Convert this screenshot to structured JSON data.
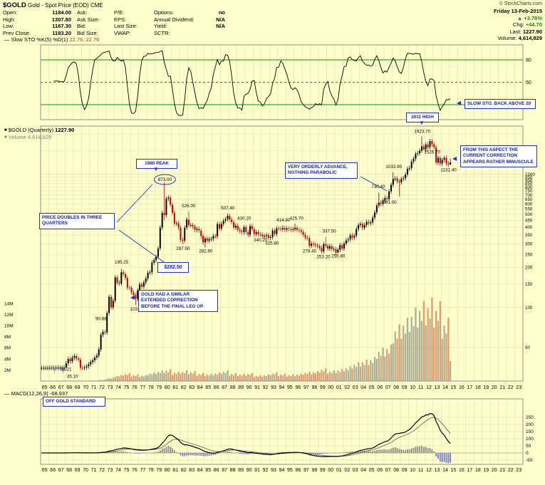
{
  "colors": {
    "bg": "#ffffcc",
    "grid": "#e4e4af",
    "up": "#000000",
    "down": "#cc0000",
    "vol_up": "rgba(110,110,110,0.55)",
    "vol_down": "rgba(214,86,43,0.6)",
    "green": "#009900",
    "anno": "#2233bb",
    "hist_pos": "#8a8a8a",
    "hist_neg": "#7b7bd0"
  },
  "icons": {
    "triangle_up": "▲",
    "triangle_down": "▼",
    "triangle_left": "◀",
    "arrow_up": "↑",
    "line_swatch": "—",
    "square_swatch": "■"
  },
  "header": {
    "symbol": "$GOLD",
    "title_rest": "Gold - Spot Price (EOD) CME",
    "copyright": "© StockCharts.com",
    "date": "Friday 13-Feb-2015",
    "pct_change": "+3.78%",
    "chg_label": "Chg:",
    "chg": "+44.70",
    "last_label": "Last:",
    "last": "1227.90",
    "volume_label": "Volume:",
    "volume": "4,614,829",
    "quote": {
      "open_label": "Open:",
      "open": "1184.00",
      "high_label": "High:",
      "high": "1307.80",
      "low_label": "Low:",
      "low": "1167.30",
      "prev_close_label": "Prev Close:",
      "prev_close": "1183.20",
      "ask_label": "Ask:",
      "ask": "",
      "ask_size_label": "Ask Size:",
      "ask_size": "",
      "bid_label": "Bid:",
      "bid": "",
      "bid_size_label": "Bid Size:",
      "bid_size": "",
      "pe_label": "P/E:",
      "pe": "",
      "eps_label": "EPS:",
      "eps": "",
      "last_size_label": "Last Size:",
      "last_size": "",
      "vwap_label": "VWAP:",
      "vwap": "",
      "options_label": "Options:",
      "options": "no",
      "dividend_label": "Annual Dividend:",
      "dividend": "N/A",
      "yield_label": "Yield:",
      "yield": "N/A",
      "sctr_label": "SCTR:",
      "sctr": ""
    }
  },
  "legends": {
    "stoch": "Slow STO %K(5) %D(1)",
    "stoch_values": "22.76, 22.76",
    "main_symbol": "$GOLD (Quarterly)",
    "main_value": "1227.90",
    "volume_label": "Volume",
    "volume_value": "4,614,829",
    "macd": "MACD(12,26,9)",
    "macd_value": "-68.937"
  },
  "annotations": {
    "slow_sto": "SLOW STO. BACK ABOVE 20",
    "high_2011": "2011 HIGH",
    "minuscule": "FROM THIS ASPECT THE CURRENT CORRECTION APPEARS RATHER MINUSCULE",
    "orderly": "VERY ORDERLY ADVANCE, NOTHING PARABOLIC",
    "peak_1980": "1980 PEAK",
    "price_doubles": "PRICE DOUBLES IN THREE QUARTERS",
    "target": "$282.50",
    "similar": "GOLD HAD A SIMILAR EXTENDED CORRECTION BEFORE THE FINAL LEG UP",
    "off_gold": "OFF GOLD STANDARD"
  },
  "chart_data": [
    {
      "type": "line",
      "name": "Slow STO %K(5) %D(1)",
      "panel": "stochastic",
      "derived_from": "computed stochastic(5,3) of the quarterly OHLC series below",
      "last_values": [
        22.76,
        22.76
      ],
      "ylim": [
        0,
        100
      ],
      "ref_lines": [
        80,
        50,
        20
      ]
    },
    {
      "type": "candlestick",
      "name": "$GOLD Quarterly",
      "start_year": 1965,
      "points_per_year": 4,
      "ylog": true,
      "ylim": [
        28,
        2300
      ],
      "y_ticks": [
        1000,
        950,
        900,
        850,
        800,
        750,
        700,
        650,
        600,
        550,
        500,
        450,
        400,
        350,
        300,
        250,
        200,
        150,
        100,
        50
      ],
      "y_gridlines_only": [
        1500,
        2000
      ],
      "x_tick_labels": [
        "65",
        "66",
        "67",
        "68",
        "69",
        "70",
        "71",
        "72",
        "73",
        "74",
        "75",
        "76",
        "77",
        "78",
        "79",
        "80",
        "81",
        "82",
        "83",
        "84",
        "85",
        "86",
        "87",
        "88",
        "89",
        "90",
        "91",
        "92",
        "93",
        "94",
        "95",
        "96",
        "97",
        "98",
        "99",
        "00",
        "01",
        "02",
        "03",
        "04",
        "05",
        "06",
        "07",
        "08",
        "09",
        "10",
        "11",
        "12",
        "13",
        "14",
        "15",
        "16",
        "17",
        "18",
        "19",
        "20",
        "21",
        "22",
        "23"
      ],
      "closes": [
        35.1,
        35.1,
        35.1,
        35.1,
        35.2,
        35.2,
        35.2,
        35.2,
        35.2,
        35.2,
        35.2,
        35.4,
        38.0,
        41.0,
        39.5,
        41.9,
        43.2,
        41.3,
        40.5,
        35.2,
        35.1,
        35.4,
        36.2,
        37.4,
        38.9,
        40.1,
        42.0,
        43.5,
        48.3,
        62.1,
        65.5,
        64.9,
        90.9,
        120.0,
        100.0,
        112.2,
        168.0,
        154.0,
        151.0,
        183.9,
        178.0,
        166.0,
        141.0,
        140.2,
        129.6,
        123.8,
        116.0,
        134.5,
        149.0,
        143.0,
        154.0,
        165.0,
        181.6,
        183.7,
        217.1,
        226.0,
        240.1,
        277.5,
        397.5,
        512.0,
        494.0,
        653.5,
        666.8,
        589.8,
        513.8,
        426.0,
        428.8,
        397.5,
        320.3,
        317.5,
        397.0,
        456.9,
        414.8,
        416.0,
        405.0,
        382.4,
        388.5,
        377.0,
        343.8,
        308.3,
        329.3,
        317.0,
        326.0,
        327.0,
        344.0,
        342.6,
        423.2,
        390.9,
        423.0,
        447.0,
        459.5,
        486.5,
        457.0,
        436.6,
        397.5,
        410.3,
        383.2,
        373.0,
        366.5,
        401.0,
        368.3,
        352.2,
        408.4,
        386.2,
        355.7,
        368.3,
        354.9,
        353.2,
        341.7,
        343.4,
        349.0,
        333.0,
        337.8,
        378.5,
        355.5,
        391.8,
        389.8,
        385.6,
        394.9,
        383.3,
        392.1,
        387.6,
        384.0,
        387.0,
        396.3,
        382.1,
        379.0,
        369.3,
        351.4,
        334.6,
        332.1,
        290.2,
        301.2,
        296.3,
        293.9,
        287.8,
        279.6,
        262.6,
        299.0,
        290.3,
        276.8,
        288.2,
        273.7,
        274.5,
        257.7,
        270.6,
        293.1,
        276.5,
        301.4,
        318.5,
        323.7,
        347.2,
        334.9,
        346.0,
        388.0,
        416.1,
        423.7,
        395.8,
        415.7,
        438.4,
        427.5,
        435.5,
        473.3,
        517.0,
        582.0,
        613.5,
        599.3,
        636.3,
        663.4,
        650.5,
        743.0,
        833.8,
        921.5,
        930.3,
        884.5,
        869.8,
        922.6,
        934.5,
        995.8,
        1096.5,
        1113.3,
        1244.0,
        1307.0,
        1421.4,
        1439.0,
        1502.8,
        1620.0,
        1531.0,
        1671.9,
        1597.4,
        1771.1,
        1675.4,
        1594.8,
        1223.7,
        1326.5,
        1202.3,
        1283.8,
        1327.3,
        1208.2,
        1184.1,
        1227.9
      ],
      "ohlc_overrides": {
        "39": {
          "h": 195.25
        },
        "46": {
          "l": 103.5
        },
        "60": {
          "h": 873.0,
          "l": 453.0
        },
        "69": {
          "l": 297.5
        },
        "72": {
          "h": 526.0
        },
        "80": {
          "l": 282.6
        },
        "91": {
          "h": 507.4
        },
        "118": {
          "h": 414.8
        },
        "124": {
          "h": 425.7
        },
        "131": {
          "l": 278.4
        },
        "138": {
          "l": 253.2
        },
        "139": {
          "h": 337.5
        },
        "145": {
          "l": 255.8
        },
        "165": {
          "h": 730.4
        },
        "172": {
          "h": 1033.9
        },
        "175": {
          "l": 681.0
        },
        "186": {
          "h": 1923.7
        },
        "187": {
          "l": 1526.7
        },
        "199": {
          "l": 1131.4
        },
        "200": {
          "h": 1307.8,
          "l": 1167.3
        }
      },
      "data_labels": [
        {
          "x": 1968.1,
          "p": 33.5,
          "t": "35.21"
        },
        {
          "x": 1968.9,
          "p": 29.6,
          "t": "35.10"
        },
        {
          "x": 1972.4,
          "p": 80.0,
          "t": "90.88"
        },
        {
          "x": 1976.8,
          "p": 95.0,
          "t": "103.50"
        },
        {
          "x": 1974.9,
          "p": 213.0,
          "t": "195.25"
        },
        {
          "x": 1980.2,
          "p": 890.0,
          "t": "873.00",
          "circled": true
        },
        {
          "x": 1982.4,
          "p": 270.0,
          "t": "297.50"
        },
        {
          "x": 1983.1,
          "p": 565.0,
          "t": "526.00"
        },
        {
          "x": 1985.2,
          "p": 258.0,
          "t": "282.60"
        },
        {
          "x": 1987.9,
          "p": 545.0,
          "t": "507.40"
        },
        {
          "x": 1989.9,
          "p": 455.0,
          "t": "430.20"
        },
        {
          "x": 1991.9,
          "p": 312.0,
          "t": "340.20"
        },
        {
          "x": 1993.3,
          "p": 296.0,
          "t": "325.80"
        },
        {
          "x": 1994.7,
          "p": 442.0,
          "t": "414.80"
        },
        {
          "x": 1996.3,
          "p": 455.0,
          "t": "425.70"
        },
        {
          "x": 1997.9,
          "p": 258.0,
          "t": "278.40"
        },
        {
          "x": 1999.6,
          "p": 234.0,
          "t": "253.20"
        },
        {
          "x": 2001.4,
          "p": 237.0,
          "t": "255.80"
        },
        {
          "x": 2000.3,
          "p": 365.0,
          "t": "337.50"
        },
        {
          "x": 2006.3,
          "p": 790.0,
          "t": "730.40"
        },
        {
          "x": 2007.7,
          "p": 600.0,
          "t": "681.00"
        },
        {
          "x": 2008.2,
          "p": 1115.0,
          "t": "1033.90"
        },
        {
          "x": 2011.7,
          "p": 2050.0,
          "t": "1923.70"
        },
        {
          "x": 2012.9,
          "p": 1430.0,
          "t": "1526.70"
        },
        {
          "x": 2014.9,
          "p": 1055.0,
          "t": "1131.40"
        }
      ]
    },
    {
      "type": "bar",
      "name": "Volume",
      "panel": "main-overlay",
      "units": "millions",
      "yearly_millions": [
        0.05,
        0.05,
        0.05,
        0.05,
        0.05,
        0.06,
        0.08,
        0.2,
        0.5,
        0.9,
        1.2,
        1.0,
        0.9,
        1.3,
        1.6,
        1.8,
        1.4,
        1.6,
        1.5,
        1.2,
        1.1,
        1.3,
        1.6,
        1.2,
        1.1,
        1.2,
        0.9,
        1.0,
        1.3,
        1.1,
        1.0,
        1.1,
        1.4,
        1.5,
        1.9,
        1.6,
        1.8,
        2.2,
        2.8,
        3.2,
        3.6,
        5.0,
        5.5,
        8.5,
        9.5,
        11.0,
        12.0,
        12.5,
        12.0,
        9.5,
        4.5
      ],
      "quarter_factors": [
        0.8,
        1.05,
        0.9,
        1.2
      ],
      "y_tick_labels": [
        "2M",
        "4M",
        "6M",
        "8M",
        "10M",
        "12M",
        "14M"
      ]
    },
    {
      "type": "line",
      "name": "MACD(12,26,9)",
      "panel": "macd",
      "derived_from": "computed from quarterly closes: EMA12-EMA26, signal EMA9, histogram",
      "ylim": [
        -80,
        380
      ],
      "y_ticks": [
        250,
        200,
        150,
        100,
        50,
        0,
        -50
      ]
    }
  ]
}
